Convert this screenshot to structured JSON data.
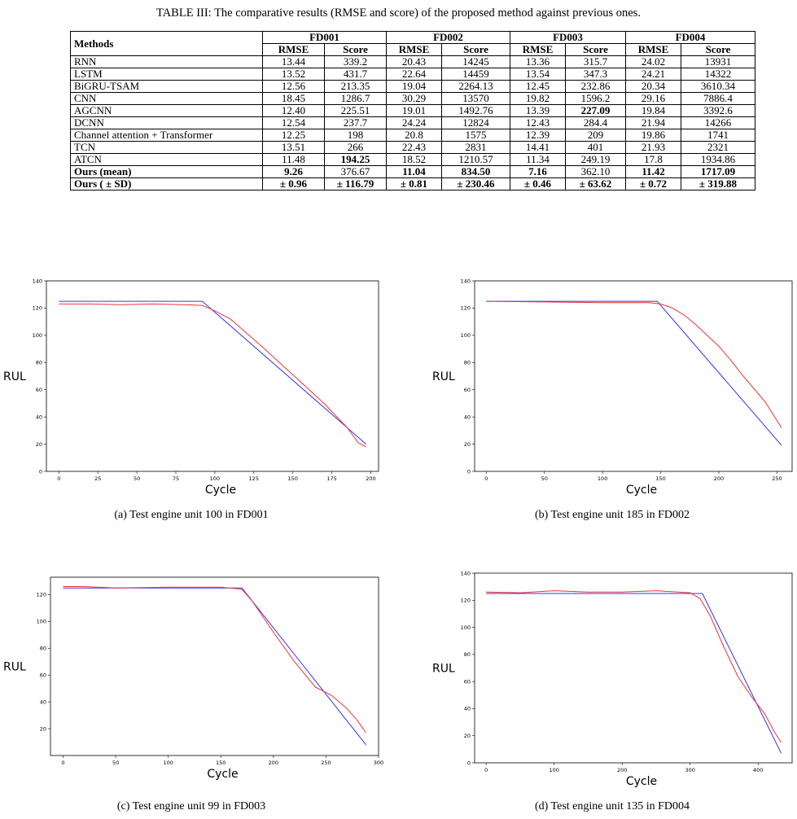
{
  "caption": "TABLE III: The comparative results (RMSE and score) of the proposed method against previous ones.",
  "table": {
    "methods_header": "Methods",
    "groups": [
      "FD001",
      "FD002",
      "FD003",
      "FD004"
    ],
    "sub": [
      "RMSE",
      "Score"
    ],
    "rows": [
      {
        "name": "RNN",
        "cells": [
          "13.44",
          "339.2",
          "20.43",
          "14245",
          "13.36",
          "315.7",
          "24.02",
          "13931"
        ]
      },
      {
        "name": "LSTM",
        "cells": [
          "13.52",
          "431.7",
          "22.64",
          "14459",
          "13.54",
          "347.3",
          "24.21",
          "14322"
        ]
      },
      {
        "name": "BiGRU-TSAM",
        "cells": [
          "12.56",
          "213.35",
          "19.04",
          "2264.13",
          "12.45",
          "232.86",
          "20.34",
          "3610.34"
        ]
      },
      {
        "name": "CNN",
        "cells": [
          "18.45",
          "1286.7",
          "30.29",
          "13570",
          "19.82",
          "1596.2",
          "29.16",
          "7886.4"
        ]
      },
      {
        "name": "AGCNN",
        "cells": [
          "12.40",
          "225.51",
          "19.01",
          "1492.76",
          "13.39",
          "227.09",
          "19.84",
          "3392.6"
        ]
      },
      {
        "name": "DCNN",
        "cells": [
          "12.54",
          "237.7",
          "24.24",
          "12824",
          "12.43",
          "284.4",
          "21.94",
          "14266"
        ]
      },
      {
        "name": "Channel attention + Transformer",
        "cells": [
          "12.25",
          "198",
          "20.8",
          "1575",
          "12.39",
          "209",
          "19.86",
          "1741"
        ]
      },
      {
        "name": "TCN",
        "cells": [
          "13.51",
          "266",
          "22.43",
          "2831",
          "14.41",
          "401",
          "21.93",
          "2321"
        ]
      },
      {
        "name": "ATCN",
        "cells": [
          "11.48",
          "194.25",
          "18.52",
          "1210.57",
          "11.34",
          "249.19",
          "17.8",
          "1934.86"
        ]
      },
      {
        "name": "Ours (mean)",
        "cells": [
          "9.26",
          "376.67",
          "11.04",
          "834.50",
          "7.16",
          "362.10",
          "11.42",
          "1717.09"
        ]
      },
      {
        "name": "Ours ( ± SD)",
        "cells": [
          "± 0.96",
          "± 116.79",
          "± 0.81",
          "± 230.46",
          "± 0.46",
          "± 63.62",
          "± 0.72",
          "± 319.88"
        ]
      }
    ]
  },
  "chart_data": [
    {
      "type": "line",
      "caption": "(a) Test engine unit 100 in FD001",
      "xlabel": "Cycle",
      "ylabel": "RUL",
      "xlim": [
        -8,
        205
      ],
      "ylim": [
        0,
        140
      ],
      "xticks": [
        0,
        25,
        50,
        75,
        100,
        125,
        150,
        175,
        200
      ],
      "yticks": [
        0,
        20,
        40,
        60,
        80,
        100,
        120,
        140
      ],
      "series": [
        {
          "color": "#3333ee",
          "x": [
            0,
            92,
            197
          ],
          "y": [
            125,
            125,
            20
          ]
        },
        {
          "color": "#ee3333",
          "x": [
            0,
            20,
            40,
            60,
            80,
            92,
            100,
            110,
            130,
            150,
            170,
            185,
            192,
            197
          ],
          "y": [
            123,
            123,
            122.5,
            123,
            122.5,
            122,
            118,
            112,
            92,
            71,
            50,
            32,
            21,
            18
          ]
        }
      ]
    },
    {
      "type": "line",
      "caption": "(b) Test engine unit 185 in FD002",
      "xlabel": "Cycle",
      "ylabel": "RUL",
      "xlim": [
        -10,
        263
      ],
      "ylim": [
        0,
        140
      ],
      "xticks": [
        0,
        50,
        100,
        150,
        200,
        250
      ],
      "yticks": [
        0,
        20,
        40,
        60,
        80,
        100,
        120,
        140
      ],
      "series": [
        {
          "color": "#3333ee",
          "x": [
            0,
            147,
            254
          ],
          "y": [
            125,
            125,
            19
          ]
        },
        {
          "color": "#ee3333",
          "x": [
            0,
            50,
            100,
            140,
            150,
            160,
            170,
            180,
            190,
            200,
            210,
            220,
            230,
            240,
            248,
            254
          ],
          "y": [
            125,
            124.5,
            124,
            124,
            123,
            120,
            115,
            108,
            100,
            92,
            82,
            71,
            61,
            51,
            40,
            32
          ]
        }
      ]
    },
    {
      "type": "line",
      "caption": "(c) Test engine unit 99 in FD003",
      "xlabel": "Cycle",
      "ylabel": "RUL",
      "xlim": [
        -12,
        300
      ],
      "ylim": [
        0,
        133
      ],
      "xticks": [
        0,
        50,
        100,
        150,
        200,
        250,
        300
      ],
      "yticks": [
        20,
        40,
        60,
        80,
        100,
        120
      ],
      "series": [
        {
          "color": "#3333ee",
          "x": [
            0,
            170,
            288
          ],
          "y": [
            125,
            125,
            8
          ]
        },
        {
          "color": "#ee3333",
          "x": [
            0,
            20,
            50,
            100,
            150,
            170,
            180,
            200,
            220,
            240,
            255,
            270,
            280,
            288
          ],
          "y": [
            126,
            126,
            125,
            125.5,
            125.5,
            124,
            115,
            92,
            70,
            51,
            45,
            35,
            26,
            17
          ]
        }
      ]
    },
    {
      "type": "line",
      "caption": "(d) Test engine unit 135 in FD004",
      "xlabel": "Cycle",
      "ylabel": "RUL",
      "xlim": [
        -17,
        450
      ],
      "ylim": [
        0,
        140
      ],
      "xticks": [
        0,
        100,
        200,
        300,
        400
      ],
      "yticks": [
        0,
        20,
        40,
        60,
        80,
        100,
        120,
        140
      ],
      "series": [
        {
          "color": "#3333ee",
          "x": [
            0,
            318,
            434
          ],
          "y": [
            125,
            125,
            7
          ]
        },
        {
          "color": "#ee3333",
          "x": [
            0,
            50,
            100,
            150,
            200,
            250,
            300,
            315,
            330,
            350,
            370,
            390,
            410,
            425,
            434
          ],
          "y": [
            126,
            125.5,
            127,
            126,
            126,
            127,
            125.5,
            121,
            108,
            85,
            64,
            49,
            36,
            22,
            15
          ]
        }
      ]
    }
  ]
}
